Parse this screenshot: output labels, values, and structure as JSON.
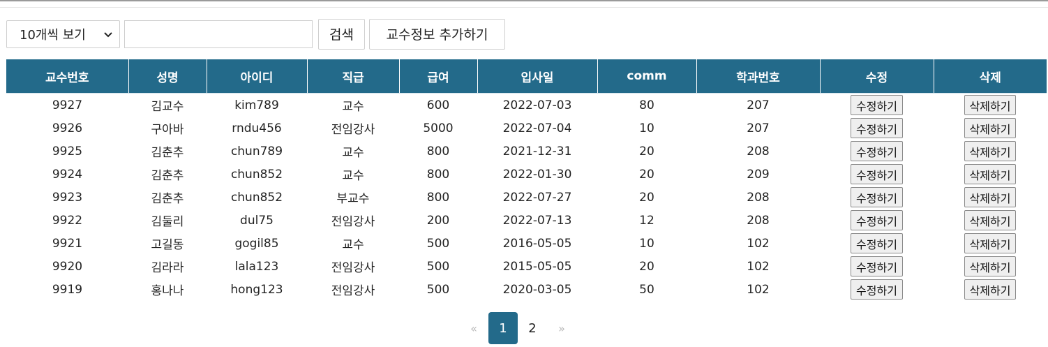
{
  "toolbar": {
    "page_size_selected": "10개씩 보기",
    "search_value": "",
    "search_button": "검색",
    "add_button": "교수정보 추가하기"
  },
  "table": {
    "headers": [
      "교수번호",
      "성명",
      "아이디",
      "직급",
      "급여",
      "입사일",
      "comm",
      "학과번호",
      "수정",
      "삭제"
    ],
    "edit_label": "수정하기",
    "delete_label": "삭제하기",
    "rows": [
      [
        "9927",
        "김교수",
        "kim789",
        "교수",
        "600",
        "2022-07-03",
        "80",
        "207"
      ],
      [
        "9926",
        "구아바",
        "rndu456",
        "전임강사",
        "5000",
        "2022-07-04",
        "10",
        "207"
      ],
      [
        "9925",
        "김춘추",
        "chun789",
        "교수",
        "800",
        "2021-12-31",
        "20",
        "208"
      ],
      [
        "9924",
        "김춘추",
        "chun852",
        "교수",
        "800",
        "2022-01-30",
        "20",
        "209"
      ],
      [
        "9923",
        "김춘추",
        "chun852",
        "부교수",
        "800",
        "2022-07-27",
        "20",
        "208"
      ],
      [
        "9922",
        "김둘리",
        "dul75",
        "전임강사",
        "200",
        "2022-07-13",
        "12",
        "208"
      ],
      [
        "9921",
        "고길동",
        "gogil85",
        "교수",
        "500",
        "2016-05-05",
        "10",
        "102"
      ],
      [
        "9920",
        "김라라",
        "lala123",
        "전임강사",
        "500",
        "2015-05-05",
        "20",
        "102"
      ],
      [
        "9919",
        "홍나나",
        "hong123",
        "전임강사",
        "500",
        "2020-03-05",
        "50",
        "102"
      ]
    ]
  },
  "pagination": {
    "prev": "«",
    "pages": [
      "1",
      "2"
    ],
    "next": "»",
    "active_page": "1"
  },
  "colors": {
    "header_bg": "#236a8a",
    "active_page_bg": "#236a8a"
  }
}
